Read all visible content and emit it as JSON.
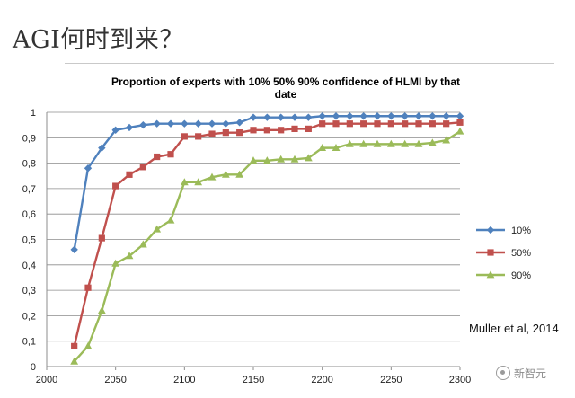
{
  "slide": {
    "title": "AGI何时到来？",
    "citation": "Muller et al, 2014",
    "watermark": "新智元"
  },
  "colors": {
    "series_10": "#4f81bd",
    "series_50": "#c0504d",
    "series_90": "#9bbb59",
    "grid": "#8c8c8c",
    "axis_text": "#222222"
  },
  "chart_data": {
    "type": "line",
    "title": "Proportion of experts with 10%  50%  90%  confidence of HLMI by that date",
    "title_lines": [
      "Proportion of experts with 10%  50%  90%  confidence of HLMI by that",
      "date"
    ],
    "xlabel": "",
    "ylabel": "",
    "xlim": [
      2000,
      2300
    ],
    "ylim": [
      0,
      1
    ],
    "x_ticks": [
      "2000",
      "2050",
      "2100",
      "2150",
      "2200",
      "2250",
      "2300"
    ],
    "x_tick_values": [
      2000,
      2050,
      2100,
      2150,
      2200,
      2250,
      2300
    ],
    "y_ticks": [
      "0",
      "0,1",
      "0,2",
      "0,3",
      "0,4",
      "0,5",
      "0,6",
      "0,7",
      "0,8",
      "0,9",
      "1"
    ],
    "y_tick_values": [
      0,
      0.1,
      0.2,
      0.3,
      0.4,
      0.5,
      0.6,
      0.7,
      0.8,
      0.9,
      1
    ],
    "grid": true,
    "legend_position": "right",
    "x": [
      2020,
      2030,
      2040,
      2050,
      2060,
      2070,
      2080,
      2090,
      2100,
      2110,
      2120,
      2130,
      2140,
      2150,
      2160,
      2170,
      2180,
      2190,
      2200,
      2210,
      2220,
      2230,
      2240,
      2250,
      2260,
      2270,
      2280,
      2290,
      2300
    ],
    "series": [
      {
        "name": "10%",
        "marker": "diamond",
        "values": [
          0.46,
          0.78,
          0.86,
          0.93,
          0.94,
          0.95,
          0.955,
          0.955,
          0.955,
          0.955,
          0.955,
          0.955,
          0.96,
          0.98,
          0.98,
          0.98,
          0.98,
          0.98,
          0.985,
          0.985,
          0.985,
          0.985,
          0.985,
          0.985,
          0.985,
          0.985,
          0.985,
          0.985,
          0.985
        ]
      },
      {
        "name": "50%",
        "marker": "square",
        "values": [
          0.08,
          0.31,
          0.505,
          0.71,
          0.755,
          0.785,
          0.825,
          0.835,
          0.905,
          0.905,
          0.915,
          0.92,
          0.92,
          0.93,
          0.93,
          0.93,
          0.935,
          0.935,
          0.955,
          0.955,
          0.955,
          0.955,
          0.955,
          0.955,
          0.955,
          0.955,
          0.955,
          0.955,
          0.96
        ]
      },
      {
        "name": "90%",
        "marker": "triangle",
        "values": [
          0.02,
          0.08,
          0.22,
          0.405,
          0.435,
          0.48,
          0.54,
          0.575,
          0.725,
          0.725,
          0.745,
          0.755,
          0.755,
          0.81,
          0.81,
          0.815,
          0.815,
          0.82,
          0.86,
          0.86,
          0.875,
          0.875,
          0.875,
          0.875,
          0.875,
          0.875,
          0.88,
          0.89,
          0.925
        ]
      }
    ]
  }
}
